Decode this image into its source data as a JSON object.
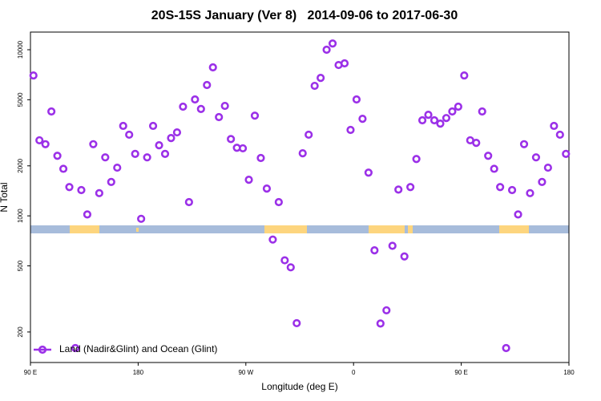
{
  "chart_data": {
    "type": "scatter",
    "title": "20S-15S January (Ver 8)   2014-09-06 to 2017-06-30",
    "x_label": "Longitude (deg E)",
    "y_label": "N Total",
    "log_y": true,
    "xlim": [
      90,
      540
    ],
    "ylim": [
      131,
      12770
    ],
    "xticks": [
      {
        "value": 90,
        "label": "90 E"
      },
      180,
      {
        "value": 270,
        "label": "90 W"
      },
      {
        "value": 360,
        "label": "0"
      },
      {
        "value": 450,
        "label": "90 E"
      },
      {
        "value": 540,
        "label": "180"
      }
    ],
    "yticks": [
      200,
      500,
      1000,
      2000,
      5000,
      10000
    ],
    "legend_position": "bottom-left",
    "series": [
      {
        "name": "Land (Nadir&Glint) and Ocean (Glint)",
        "color": "#9b30e8",
        "x": [
          92.5,
          97.5,
          102.5,
          107.5,
          112.5,
          117.5,
          122.5,
          127.5,
          132.5,
          137.5,
          142.5,
          147.5,
          152.5,
          157.5,
          162.5,
          167.5,
          172.5,
          177.5,
          182.5,
          187.5,
          192.5,
          197.5,
          202.5,
          207.5,
          212.5,
          217.5,
          222.5,
          227.5,
          232.5,
          237.5,
          242.5,
          247.5,
          252.5,
          257.5,
          262.5,
          267.5,
          272.5,
          277.5,
          282.5,
          287.5,
          292.5,
          297.5,
          302.5,
          307.5,
          312.5,
          317.5,
          322.5,
          327.5,
          332.5,
          337.5,
          342.5,
          347.5,
          352.5,
          357.5,
          362.5,
          367.5,
          372.5,
          377.5,
          382.5,
          387.5,
          392.5,
          397.5,
          402.5,
          407.5,
          412.5,
          417.5,
          422.5,
          427.5,
          432.5,
          437.5,
          442.5,
          447.5,
          452.5,
          457.5,
          462.5,
          467.5,
          472.5,
          477.5,
          482.5,
          487.5,
          492.5,
          497.5,
          502.5,
          507.5,
          512.5,
          517.5,
          522.5,
          527.5,
          532.5,
          537.5
        ],
        "values": [
          7000,
          2850,
          2700,
          4250,
          2300,
          1920,
          1490,
          160,
          1430,
          1020,
          2700,
          1370,
          2250,
          1600,
          1950,
          3480,
          3080,
          2360,
          960,
          2250,
          3480,
          2660,
          2360,
          2940,
          3180,
          4540,
          1210,
          5020,
          4400,
          6130,
          7830,
          3930,
          4590,
          2900,
          2570,
          2550,
          1650,
          4010,
          2230,
          1460,
          720,
          1210,
          540,
          490,
          226,
          2380,
          3080,
          6060,
          6770,
          10000,
          10900,
          8090,
          8280,
          3290,
          5020,
          3840,
          1820,
          620,
          225,
          270,
          660,
          1440,
          570,
          1490,
          2200,
          3760,
          4060,
          3760,
          3590,
          3880,
          4250,
          4540,
          7000,
          2850,
          2750,
          4250,
          2300,
          1920,
          1490,
          160,
          1430,
          1020,
          2700,
          1370,
          2250,
          1600,
          1950,
          3480,
          3080,
          2360
        ]
      }
    ]
  }
}
